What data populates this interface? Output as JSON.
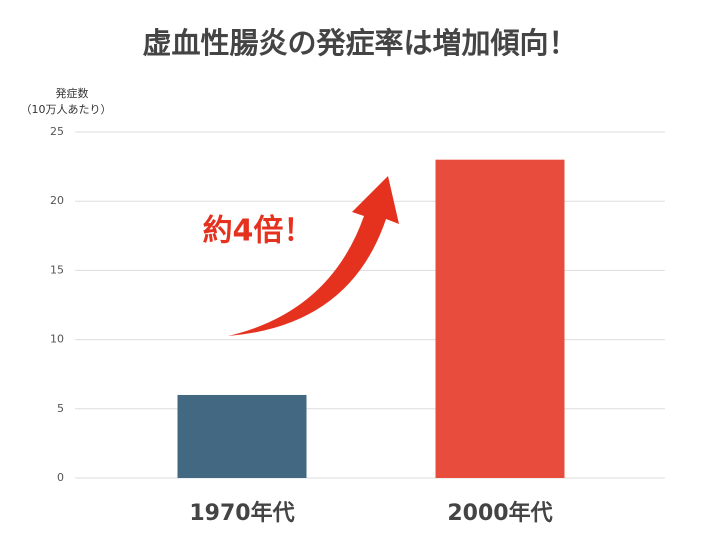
{
  "chart_data": {
    "type": "bar",
    "title": "虚血性腸炎の発症率は増加傾向！",
    "y_label": [
      "発症数",
      "（10万人あたり）"
    ],
    "annotation": "約4倍！",
    "categories": [
      "1970年代",
      "2000年代"
    ],
    "values": [
      6,
      23
    ],
    "colors": [
      "#426882",
      "#e84c3d"
    ],
    "ylim": [
      0,
      25
    ],
    "yticks": [
      0,
      5,
      10,
      15,
      20,
      25
    ],
    "grid": true
  }
}
